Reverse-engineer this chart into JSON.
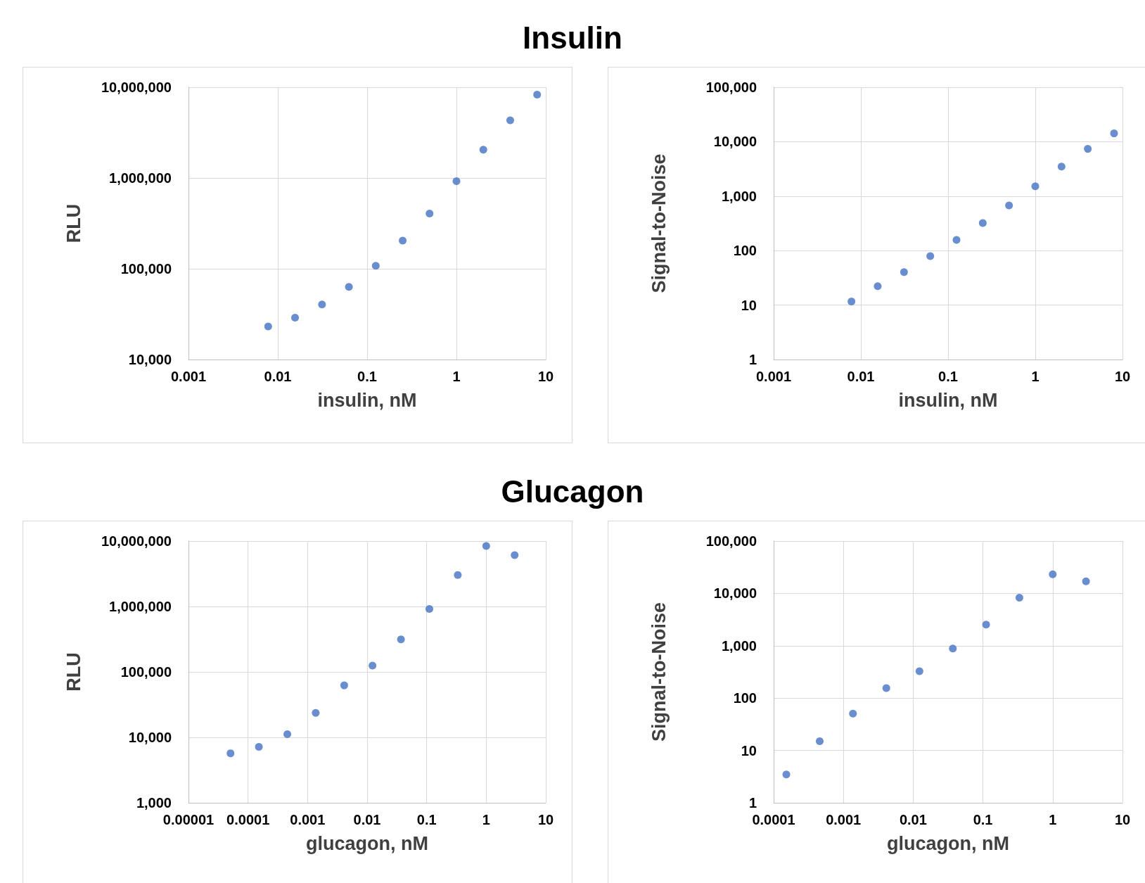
{
  "chart_data": [
    {
      "type": "scatter",
      "title": "Insulin",
      "xlabel": "insulin, nM",
      "ylabel": "RLU",
      "log": "xy",
      "grid": true,
      "marker": "circle",
      "color": "#4472c4",
      "x": [
        0.0078,
        0.0156,
        0.03125,
        0.0625,
        0.125,
        0.25,
        0.5,
        1,
        2,
        4,
        8
      ],
      "values": [
        23100,
        28900,
        40400,
        63100,
        108000,
        204000,
        406000,
        921000,
        2050000,
        4320000,
        8290000
      ],
      "xlim": [
        0.001,
        10
      ],
      "xticks": [
        0.001,
        0.01,
        0.1,
        1,
        10
      ],
      "ylim": [
        10000,
        10000000
      ],
      "yticks": [
        {
          "value": 10000,
          "label": "10,000"
        },
        {
          "value": 100000,
          "label": "100,000"
        },
        {
          "value": 1000000,
          "label": "1,000,000"
        },
        {
          "value": 10000000,
          "label": "10,000,000"
        }
      ]
    },
    {
      "type": "scatter",
      "xlabel": "insulin, nM",
      "ylabel": "Signal-to-Noise",
      "log": "xy",
      "grid": true,
      "marker": "circle",
      "color": "#4472c4",
      "x": [
        0.0078,
        0.0156,
        0.03125,
        0.0625,
        0.125,
        0.25,
        0.5,
        1,
        2,
        4,
        8
      ],
      "values": [
        11.6,
        22.3,
        40.2,
        79.5,
        157,
        321,
        676,
        1520,
        3500,
        7380,
        14200
      ],
      "xlim": [
        0.001,
        10
      ],
      "xticks": [
        0.001,
        0.01,
        0.1,
        1,
        10
      ],
      "ylim": [
        1,
        100000
      ],
      "yticks": [
        1,
        10,
        100,
        {
          "value": 1000,
          "label": "1,000"
        },
        {
          "value": 10000,
          "label": "10,000"
        },
        {
          "value": 100000,
          "label": "100,000"
        }
      ]
    },
    {
      "type": "scatter",
      "title": "Glucagon",
      "xlabel": "glucagon, nM",
      "ylabel": "RLU",
      "log": "xy",
      "grid": true,
      "marker": "circle",
      "color": "#4472c4",
      "x": [
        5.08e-05,
        0.000152,
        0.000457,
        0.00137,
        0.00412,
        0.0123,
        0.037,
        0.111,
        0.333,
        1,
        3
      ],
      "values": [
        5710,
        7150,
        11200,
        23600,
        62300,
        125000,
        314000,
        916000,
        3030000,
        8400000,
        6080000
      ],
      "xlim": [
        1e-05,
        10
      ],
      "xticks": [
        {
          "value": 1e-05,
          "label": "0.00001"
        },
        0.0001,
        0.001,
        0.01,
        0.1,
        1,
        10
      ],
      "ylim": [
        1000,
        10000000
      ],
      "yticks": [
        {
          "value": 1000,
          "label": "1,000"
        },
        {
          "value": 10000,
          "label": "10,000"
        },
        {
          "value": 100000,
          "label": "100,000"
        },
        {
          "value": 1000000,
          "label": "1,000,000"
        },
        {
          "value": 10000000,
          "label": "10,000,000"
        }
      ]
    },
    {
      "type": "scatter",
      "xlabel": "glucagon, nM",
      "ylabel": "Signal-to-Noise",
      "log": "xy",
      "grid": true,
      "marker": "circle",
      "color": "#4472c4",
      "x": [
        0.000152,
        0.000457,
        0.00137,
        0.00412,
        0.0123,
        0.037,
        0.111,
        0.333,
        1,
        3
      ],
      "values": [
        3.47,
        15.0,
        50.4,
        155,
        326,
        883,
        2540,
        8300,
        23200,
        17000
      ],
      "xlim": [
        0.0001,
        10
      ],
      "xticks": [
        0.0001,
        0.001,
        0.01,
        0.1,
        1,
        10
      ],
      "ylim": [
        1,
        100000
      ],
      "yticks": [
        1,
        10,
        100,
        {
          "value": 1000,
          "label": "1,000"
        },
        {
          "value": 10000,
          "label": "10,000"
        },
        {
          "value": 100000,
          "label": "100,000"
        }
      ]
    }
  ]
}
